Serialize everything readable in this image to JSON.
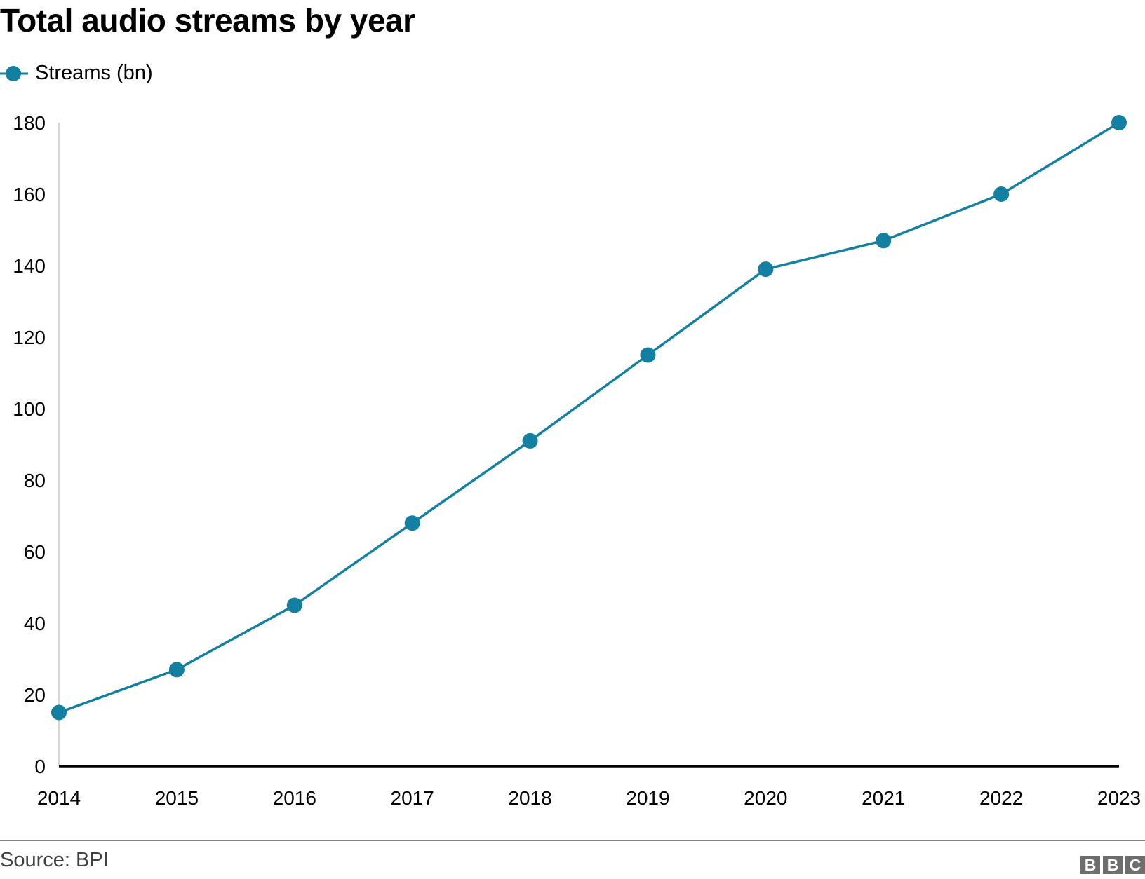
{
  "chart_data": {
    "type": "line",
    "title": "Total audio streams by year",
    "categories": [
      "2014",
      "2015",
      "2016",
      "2017",
      "2018",
      "2019",
      "2020",
      "2021",
      "2022",
      "2023"
    ],
    "series": [
      {
        "name": "Streams (bn)",
        "values": [
          15,
          27,
          45,
          68,
          91,
          115,
          139,
          147,
          160,
          180
        ],
        "color": "#1380a1"
      }
    ],
    "ylim": [
      0,
      180
    ],
    "yticks": [
      0,
      20,
      40,
      60,
      80,
      100,
      120,
      140,
      160,
      180
    ],
    "grid": false,
    "legend": "top-left",
    "xlabel": "",
    "ylabel": ""
  },
  "footer": {
    "source": "Source: BPI",
    "logo": [
      "B",
      "B",
      "C"
    ]
  }
}
